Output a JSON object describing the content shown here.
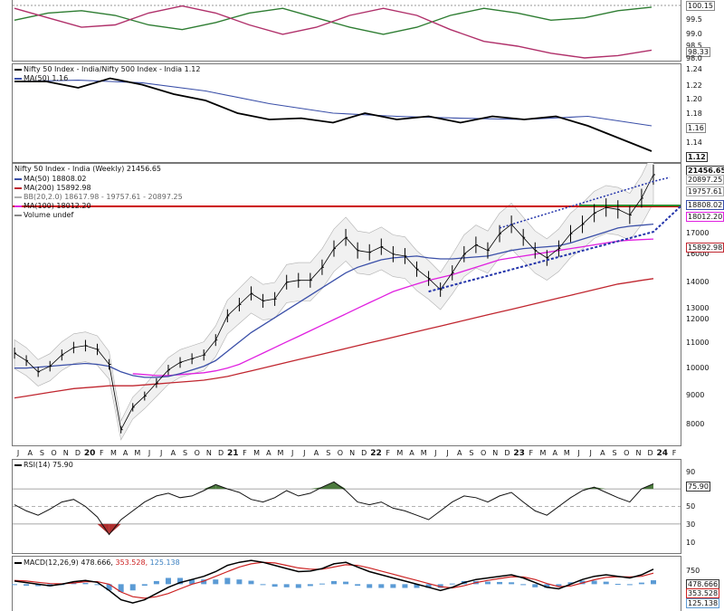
{
  "top_panel": {
    "values": [
      "100.15",
      "99.5",
      "99.0",
      "98.5",
      "98.33",
      "98.0"
    ]
  },
  "ratio_panel": {
    "legend": "Nifty 50 Index - India/Nifty 500 Index - India 1.12",
    "ma_legend": "MA(50) 1.16",
    "ticks": [
      "1.24",
      "1.22",
      "1.20",
      "1.18",
      "1.16",
      "1.14",
      "1.12"
    ]
  },
  "price_panel": {
    "legend_title": "Nifty 50 Index - India (Weekly) 21456.65",
    "ma50": "MA(50) 18808.02",
    "ma200": "MA(200) 15892.98",
    "bb": "BB(20,2.0) 18617.98 - 19757.61 - 20897.25",
    "ma100": "MA(100) 18012.20",
    "volume": "Volume undef",
    "ticks": [
      "17000",
      "16000",
      "15000",
      "14000",
      "13000",
      "12000",
      "11000",
      "10000",
      "9000",
      "8000"
    ],
    "right_labels": [
      "21456.65",
      "20897.25",
      "19757.61",
      "18808.02",
      "18012.20",
      "15892.98"
    ]
  },
  "x_axis": {
    "labels": [
      "J",
      "A",
      "S",
      "O",
      "N",
      "D",
      "20",
      "F",
      "M",
      "A",
      "M",
      "J",
      "J",
      "A",
      "S",
      "O",
      "N",
      "D",
      "21",
      "F",
      "M",
      "A",
      "M",
      "J",
      "J",
      "A",
      "S",
      "O",
      "N",
      "D",
      "22",
      "F",
      "M",
      "A",
      "M",
      "J",
      "J",
      "A",
      "S",
      "O",
      "N",
      "D",
      "23",
      "F",
      "M",
      "A",
      "M",
      "J",
      "J",
      "A",
      "S",
      "O",
      "N",
      "D",
      "24",
      "F"
    ]
  },
  "rsi_panel": {
    "legend": "RSI(14) 75.90",
    "ticks": [
      "90",
      "75.90",
      "50",
      "30",
      "10"
    ]
  },
  "macd_panel": {
    "legend_prefix": "MACD(12,26,9)",
    "macd": "478.666,",
    "signal": "353.528,",
    "hist": "125.138",
    "ticks": [
      "750",
      "478.666",
      "353.528",
      "125.138"
    ]
  },
  "colors": {
    "price": "#000000",
    "ma50": "#3a4fa8",
    "ma200": "#c0262f",
    "ma100": "#e020e0",
    "bb": "#b0b0b0",
    "support": "#cc0000",
    "green_line": "#2e8b2e",
    "trend": "#2233aa",
    "rsi_fill": "#4c7a3e",
    "rsi_low_fill": "#b03030",
    "macd_hist": "#5b9bd5",
    "signal": "#cc2222"
  },
  "chart_data": [
    {
      "type": "line",
      "title": "",
      "series": [
        {
          "values": [
            99.6,
            99.9,
            100.0,
            99.8,
            99.4,
            99.2,
            99.5,
            99.9,
            100.1,
            99.7,
            99.3,
            99.0,
            99.3,
            99.8,
            100.1,
            99.9,
            99.6,
            99.7,
            100.0,
            100.15
          ]
        },
        {
          "values": [
            100.1,
            99.7,
            99.3,
            99.4,
            99.9,
            100.2,
            99.9,
            99.4,
            99.0,
            99.3,
            99.8,
            100.1,
            99.8,
            99.2,
            98.7,
            98.5,
            98.2,
            98.0,
            98.1,
            98.33
          ]
        }
      ],
      "ylim": [
        98.0,
        100.3
      ]
    },
    {
      "type": "line",
      "series": [
        {
          "name": "Nifty 50 Index - India/Nifty 500 Index - India",
          "x": [
            0,
            5,
            10,
            15,
            20,
            25,
            30,
            35,
            40,
            45,
            50,
            55,
            60,
            65,
            70,
            75,
            80,
            85,
            90,
            95,
            100
          ],
          "values": [
            1.23,
            1.23,
            1.22,
            1.235,
            1.225,
            1.21,
            1.2,
            1.18,
            1.17,
            1.172,
            1.165,
            1.18,
            1.17,
            1.175,
            1.165,
            1.175,
            1.17,
            1.175,
            1.16,
            1.14,
            1.12
          ]
        },
        {
          "name": "MA(50)",
          "x": [
            0,
            10,
            20,
            30,
            40,
            50,
            60,
            70,
            80,
            90,
            100
          ],
          "values": [
            1.23,
            1.232,
            1.228,
            1.215,
            1.195,
            1.18,
            1.175,
            1.172,
            1.17,
            1.175,
            1.16
          ]
        }
      ],
      "ylim": [
        1.11,
        1.25
      ]
    },
    {
      "type": "line",
      "title": "Nifty 50 Index - India (Weekly) 21456.65",
      "x": [
        "J",
        "A",
        "S",
        "O",
        "N",
        "D",
        "20",
        "F",
        "M",
        "A",
        "M",
        "J",
        "J",
        "A",
        "S",
        "O",
        "N",
        "D",
        "21",
        "F",
        "M",
        "A",
        "M",
        "J",
        "J",
        "A",
        "S",
        "O",
        "N",
        "D",
        "22",
        "F",
        "M",
        "A",
        "M",
        "J",
        "J",
        "A",
        "S",
        "O",
        "N",
        "D",
        "23",
        "F",
        "M",
        "A",
        "M",
        "J",
        "J",
        "A",
        "S",
        "O",
        "N",
        "D",
        "24"
      ],
      "series": [
        {
          "name": "Nifty 50 Index - India (Weekly)",
          "values": [
            11900,
            11500,
            10900,
            11200,
            11800,
            12200,
            12300,
            12100,
            11300,
            7800,
            9000,
            9600,
            10300,
            11000,
            11400,
            11600,
            11800,
            12600,
            13900,
            14500,
            15100,
            14700,
            14800,
            15700,
            15800,
            15800,
            16500,
            17500,
            18100,
            17400,
            17300,
            17600,
            17200,
            17100,
            16400,
            15900,
            15300,
            16200,
            17200,
            17700,
            17400,
            18300,
            18800,
            18100,
            17400,
            17000,
            17500,
            18300,
            18800,
            19400,
            19700,
            19600,
            19300,
            20200,
            21456.65
          ]
        },
        {
          "name": "MA(50)",
          "values": [
            11100,
            11100,
            11150,
            11200,
            11250,
            11300,
            11350,
            11300,
            11200,
            10900,
            10700,
            10600,
            10600,
            10650,
            10800,
            11000,
            11200,
            11500,
            12000,
            12500,
            13000,
            13400,
            13800,
            14200,
            14600,
            15000,
            15400,
            15800,
            16200,
            16500,
            16700,
            16900,
            17000,
            17050,
            17100,
            17000,
            16950,
            16950,
            17000,
            17050,
            17100,
            17250,
            17400,
            17500,
            17550,
            17600,
            17650,
            17800,
            18000,
            18200,
            18400,
            18600,
            18700,
            18750,
            18808.02
          ]
        },
        {
          "name": "MA(100)",
          "values": [
            null,
            null,
            null,
            null,
            null,
            null,
            null,
            null,
            null,
            null,
            10800,
            10750,
            10700,
            10700,
            10750,
            10800,
            10850,
            10950,
            11100,
            11300,
            11600,
            11900,
            12200,
            12500,
            12800,
            13100,
            13400,
            13700,
            14000,
            14300,
            14600,
            14900,
            15200,
            15400,
            15600,
            15800,
            15950,
            16100,
            16300,
            16500,
            16700,
            16900,
            17000,
            17100,
            17200,
            17300,
            17400,
            17500,
            17600,
            17700,
            17800,
            17900,
            17950,
            17980,
            18012.2
          ]
        },
        {
          "name": "MA(200)",
          "values": [
            9500,
            9600,
            9700,
            9800,
            9900,
            10000,
            10050,
            10100,
            10150,
            10150,
            10150,
            10200,
            10250,
            10300,
            10350,
            10400,
            10450,
            10550,
            10650,
            10800,
            10950,
            11100,
            11250,
            11400,
            11550,
            11700,
            11850,
            12000,
            12150,
            12300,
            12450,
            12600,
            12750,
            12900,
            13050,
            13200,
            13350,
            13500,
            13650,
            13800,
            13950,
            14100,
            14250,
            14400,
            14550,
            14700,
            14850,
            15000,
            15150,
            15300,
            15450,
            15600,
            15700,
            15800,
            15892.98
          ]
        }
      ],
      "annotations": [
        "BB(20,2.0) 18617.98 - 19757.61 - 20897.25",
        "Volume undef"
      ],
      "ylim": [
        7300,
        21700
      ]
    },
    {
      "type": "line",
      "title": "RSI(14) 75.90",
      "series": [
        {
          "name": "RSI(14)",
          "values": [
            52,
            45,
            40,
            47,
            55,
            58,
            50,
            38,
            18,
            35,
            45,
            55,
            62,
            65,
            60,
            62,
            68,
            75,
            70,
            66,
            58,
            55,
            60,
            68,
            62,
            65,
            72,
            78,
            68,
            55,
            52,
            55,
            48,
            45,
            40,
            35,
            45,
            55,
            62,
            60,
            55,
            62,
            66,
            55,
            45,
            40,
            50,
            60,
            68,
            72,
            66,
            60,
            55,
            70,
            75.9
          ]
        }
      ],
      "ylim": [
        0,
        100
      ]
    },
    {
      "type": "line",
      "title": "MACD(12,26,9) 478.666, 353.528, 125.138",
      "series": [
        {
          "name": "MACD",
          "values": [
            100,
            50,
            0,
            -50,
            0,
            80,
            120,
            60,
            -200,
            -500,
            -600,
            -500,
            -300,
            -100,
            50,
            150,
            250,
            400,
            600,
            700,
            760,
            700,
            600,
            500,
            400,
            420,
            500,
            650,
            700,
            550,
            400,
            300,
            200,
            100,
            0,
            -100,
            -200,
            -100,
            50,
            150,
            200,
            250,
            300,
            200,
            50,
            -100,
            -150,
            0,
            150,
            250,
            300,
            250,
            200,
            300,
            478.666
          ]
        },
        {
          "name": "Signal",
          "values": [
            120,
            100,
            60,
            20,
            10,
            40,
            80,
            80,
            0,
            -250,
            -400,
            -450,
            -400,
            -300,
            -150,
            0,
            100,
            250,
            400,
            550,
            650,
            700,
            680,
            600,
            520,
            480,
            480,
            550,
            620,
            600,
            520,
            420,
            320,
            220,
            120,
            20,
            -80,
            -120,
            -50,
            50,
            120,
            180,
            240,
            230,
            150,
            20,
            -80,
            -60,
            40,
            140,
            220,
            240,
            230,
            250,
            353.528
          ]
        }
      ],
      "histogram_last": 125.138,
      "ylim": [
        -800,
        850
      ]
    }
  ]
}
